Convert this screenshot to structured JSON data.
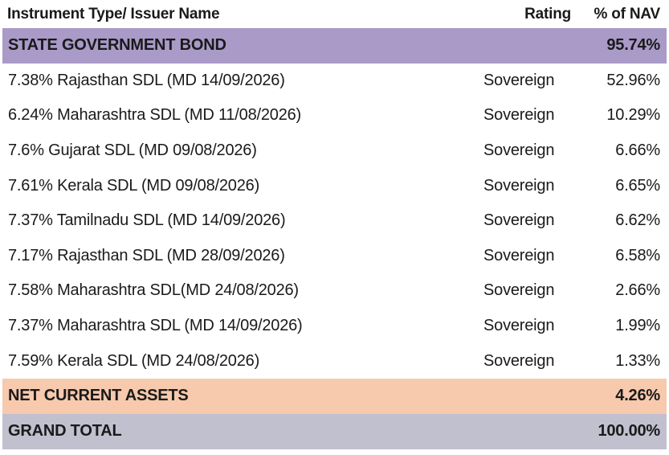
{
  "header": {
    "col_name": "Instrument Type/ Issuer Name",
    "col_rating": "Rating",
    "col_nav": "% of NAV"
  },
  "section_bond": {
    "label": "STATE GOVERNMENT BOND",
    "nav": "95.74%",
    "color": "#a99ac8"
  },
  "items": [
    {
      "name": "7.38% Rajasthan SDL (MD 14/09/2026)",
      "rating": "Sovereign",
      "nav": "52.96%"
    },
    {
      "name": "6.24% Maharashtra SDL (MD 11/08/2026)",
      "rating": "Sovereign",
      "nav": "10.29%"
    },
    {
      "name": "7.6% Gujarat SDL (MD 09/08/2026)",
      "rating": "Sovereign",
      "nav": "6.66%"
    },
    {
      "name": "7.61% Kerala SDL (MD 09/08/2026)",
      "rating": "Sovereign",
      "nav": "6.65%"
    },
    {
      "name": "7.37% Tamilnadu SDL (MD 14/09/2026)",
      "rating": "Sovereign",
      "nav": "6.62%"
    },
    {
      "name": "7.17% Rajasthan SDL (MD 28/09/2026)",
      "rating": "Sovereign",
      "nav": "6.58%"
    },
    {
      "name": "7.58% Maharashtra SDL(MD 24/08/2026)",
      "rating": "Sovereign",
      "nav": "2.66%"
    },
    {
      "name": "7.37% Maharashtra SDL (MD 14/09/2026)",
      "rating": "Sovereign",
      "nav": "1.99%"
    },
    {
      "name": "7.59% Kerala SDL (MD 24/08/2026)",
      "rating": "Sovereign",
      "nav": "1.33%"
    }
  ],
  "section_nca": {
    "label": "NET CURRENT ASSETS",
    "nav": "4.26%",
    "color": "#f7c9ad"
  },
  "grand_total": {
    "label": "GRAND TOTAL",
    "nav": "100.00%",
    "color": "#c0c0cf"
  }
}
